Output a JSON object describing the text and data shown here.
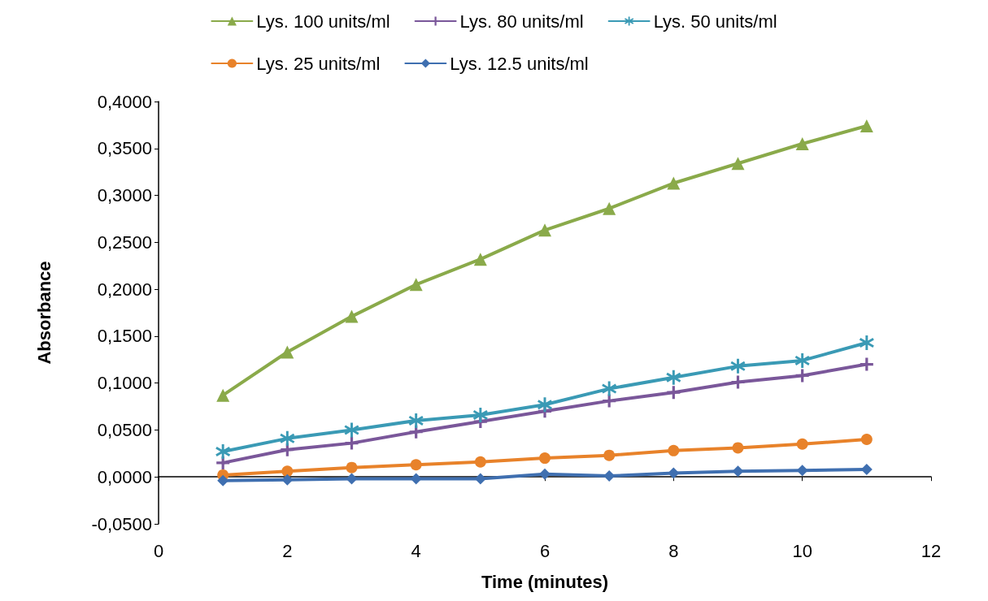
{
  "chart_data": {
    "type": "line",
    "xlabel": "Time (minutes)",
    "ylabel": "Absorbance",
    "x": [
      1,
      2,
      3,
      4,
      5,
      6,
      7,
      8,
      9,
      10,
      11
    ],
    "series": [
      {
        "name": "Lys. 100 units/ml",
        "color": "#8aaa4a",
        "marker": "triangle",
        "values": [
          0.087,
          0.133,
          0.171,
          0.205,
          0.232,
          0.263,
          0.286,
          0.313,
          0.334,
          0.355,
          0.374
        ]
      },
      {
        "name": "Lys. 80 units/ml",
        "color": "#7a579a",
        "marker": "cross",
        "values": [
          0.015,
          0.029,
          0.036,
          0.048,
          0.059,
          0.07,
          0.081,
          0.09,
          0.101,
          0.108,
          0.12
        ]
      },
      {
        "name": "Lys. 50 units/ml",
        "color": "#3a9ab5",
        "marker": "star",
        "values": [
          0.027,
          0.041,
          0.05,
          0.06,
          0.066,
          0.077,
          0.094,
          0.106,
          0.118,
          0.124,
          0.143
        ]
      },
      {
        "name": "Lys. 25 units/ml",
        "color": "#e8822a",
        "marker": "circle",
        "values": [
          0.002,
          0.006,
          0.01,
          0.013,
          0.016,
          0.02,
          0.023,
          0.028,
          0.031,
          0.035,
          0.04
        ]
      },
      {
        "name": "Lys. 12.5 units/ml",
        "color": "#3f6fb0",
        "marker": "diamond",
        "values": [
          -0.004,
          -0.003,
          -0.002,
          -0.002,
          -0.002,
          0.003,
          0.001,
          0.004,
          0.006,
          0.007,
          0.008
        ]
      }
    ],
    "xlim": [
      0,
      12
    ],
    "xticks": [
      0,
      2,
      4,
      6,
      8,
      10,
      12
    ],
    "ylim": [
      -0.05,
      0.4
    ],
    "yticks": [
      {
        "value": -0.05,
        "label": "-0,0500"
      },
      {
        "value": 0,
        "label": "0,0000"
      },
      {
        "value": 0.05,
        "label": "0,0500"
      },
      {
        "value": 0.1,
        "label": "0,1000"
      },
      {
        "value": 0.15,
        "label": "0,1500"
      },
      {
        "value": 0.2,
        "label": "0,2000"
      },
      {
        "value": 0.25,
        "label": "0,2500"
      },
      {
        "value": 0.3,
        "label": "0,3000"
      },
      {
        "value": 0.35,
        "label": "0,3500"
      },
      {
        "value": 0.4,
        "label": "0,4000"
      }
    ],
    "legend": "top",
    "line_style": "solid"
  }
}
